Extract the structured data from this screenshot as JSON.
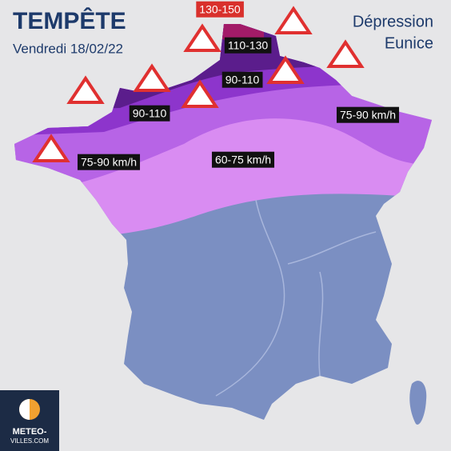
{
  "header": {
    "title": "TEMPÊTE",
    "date": "Vendredi 18/02/22"
  },
  "storm": {
    "line1": "Dépression",
    "line2": "Eunice"
  },
  "zones": [
    {
      "label": "130-150"
    },
    {
      "label": "110-130"
    },
    {
      "label": "90-110"
    },
    {
      "label": "90-110"
    },
    {
      "label": "75-90 km/h"
    },
    {
      "label": "75-90 km/h"
    },
    {
      "label": "60-75 km/h"
    }
  ],
  "logo": {
    "line1": "METEO-",
    "line2": "VILLES.COM"
  }
}
